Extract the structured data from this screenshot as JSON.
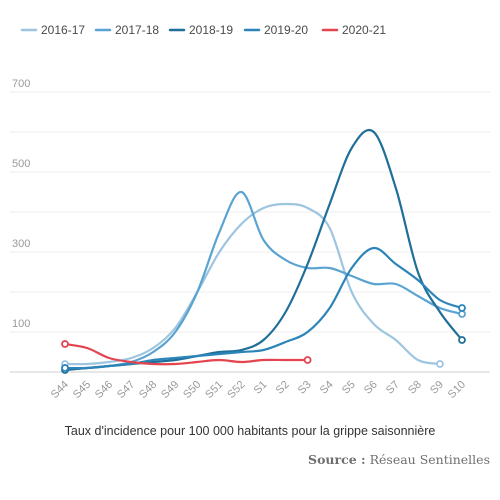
{
  "chart_data": {
    "type": "line",
    "title": "",
    "xlabel": "",
    "ylabel": "",
    "categories": [
      "S44",
      "S45",
      "S46",
      "S47",
      "S48",
      "S49",
      "S50",
      "S51",
      "S52",
      "S1",
      "S2",
      "S3",
      "S4",
      "S5",
      "S6",
      "S7",
      "S8",
      "S9",
      "S10"
    ],
    "yticks": [
      100,
      300,
      500,
      700
    ],
    "ylim": [
      0,
      750
    ],
    "grid": true,
    "legend_position": "top",
    "series": [
      {
        "name": "2016-17",
        "color": "#9ec5e0",
        "values": [
          20,
          20,
          25,
          35,
          60,
          110,
          200,
          300,
          370,
          410,
          420,
          410,
          360,
          200,
          120,
          80,
          30,
          20,
          null
        ]
      },
      {
        "name": "2017-18",
        "color": "#5aa3d3",
        "values": [
          10,
          10,
          15,
          25,
          50,
          100,
          200,
          350,
          450,
          330,
          280,
          260,
          260,
          240,
          220,
          220,
          190,
          160,
          145
        ]
      },
      {
        "name": "2018-19",
        "color": "#1f6f9a",
        "values": [
          5,
          10,
          15,
          20,
          25,
          30,
          40,
          50,
          55,
          80,
          150,
          270,
          420,
          560,
          600,
          460,
          250,
          150,
          80
        ]
      },
      {
        "name": "2019-20",
        "color": "#2c84b8",
        "values": [
          10,
          10,
          15,
          20,
          30,
          35,
          40,
          45,
          50,
          55,
          75,
          100,
          160,
          260,
          310,
          270,
          230,
          180,
          160
        ]
      },
      {
        "name": "2020-21",
        "color": "#e4444f",
        "values": [
          70,
          60,
          35,
          25,
          20,
          20,
          25,
          30,
          25,
          30,
          30,
          30,
          null,
          null,
          null,
          null,
          null,
          null,
          null
        ]
      }
    ]
  },
  "caption": "Taux d'incidence pour 100 000 habitants pour la grippe saisonnière",
  "source": {
    "label": "Source :",
    "name": "Réseau Sentinelles"
  }
}
